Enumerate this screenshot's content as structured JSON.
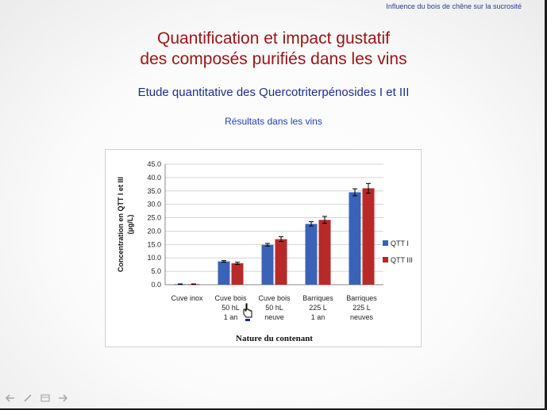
{
  "header_note": "Influence du bois de chêne sur la sucrosité",
  "title_lines": [
    "Quantification et impact gustatif",
    "des composés purifiés dans les vins"
  ],
  "subtitle": "Etude quantitative des Quercotriterpénosides I et III",
  "results_label": "Résultats dans les vins",
  "colors": {
    "title": "#9b1414",
    "series_qtt1": "#3a63b8",
    "series_qtt3": "#b82929"
  },
  "chart_data": {
    "type": "bar",
    "categories": [
      [
        "Cuve inox"
      ],
      [
        "Cuve bois",
        "50 hL",
        "1 an"
      ],
      [
        "Cuve bois",
        "50 hL",
        "neuve"
      ],
      [
        "Barriques",
        "225 L",
        "1 an"
      ],
      [
        "Barriques",
        "225 L",
        "neuves"
      ]
    ],
    "series": [
      {
        "name": "QTT I",
        "values": [
          0.2,
          8.7,
          14.9,
          22.7,
          34.5
        ],
        "errors": [
          0.1,
          0.3,
          0.5,
          0.8,
          1.3
        ]
      },
      {
        "name": "QTT III",
        "values": [
          0.2,
          8.0,
          17.0,
          24.2,
          36.0
        ],
        "errors": [
          0.1,
          0.4,
          0.9,
          1.3,
          1.8
        ]
      }
    ],
    "ylabel_lines": [
      "Concentration en QTT I et III",
      "(µg/L)"
    ],
    "xlabel": "Nature du contenant",
    "ylim": [
      0,
      45
    ],
    "yticks": [
      "0.0",
      "5.0",
      "10.0",
      "15.0",
      "20.0",
      "25.0",
      "30.0",
      "35.0",
      "40.0",
      "45.0"
    ],
    "grid": true,
    "legend_position": "right"
  },
  "toolbar_icons": [
    "arrow-left-icon",
    "pen-icon",
    "slide-menu-icon",
    "arrow-right-icon"
  ]
}
